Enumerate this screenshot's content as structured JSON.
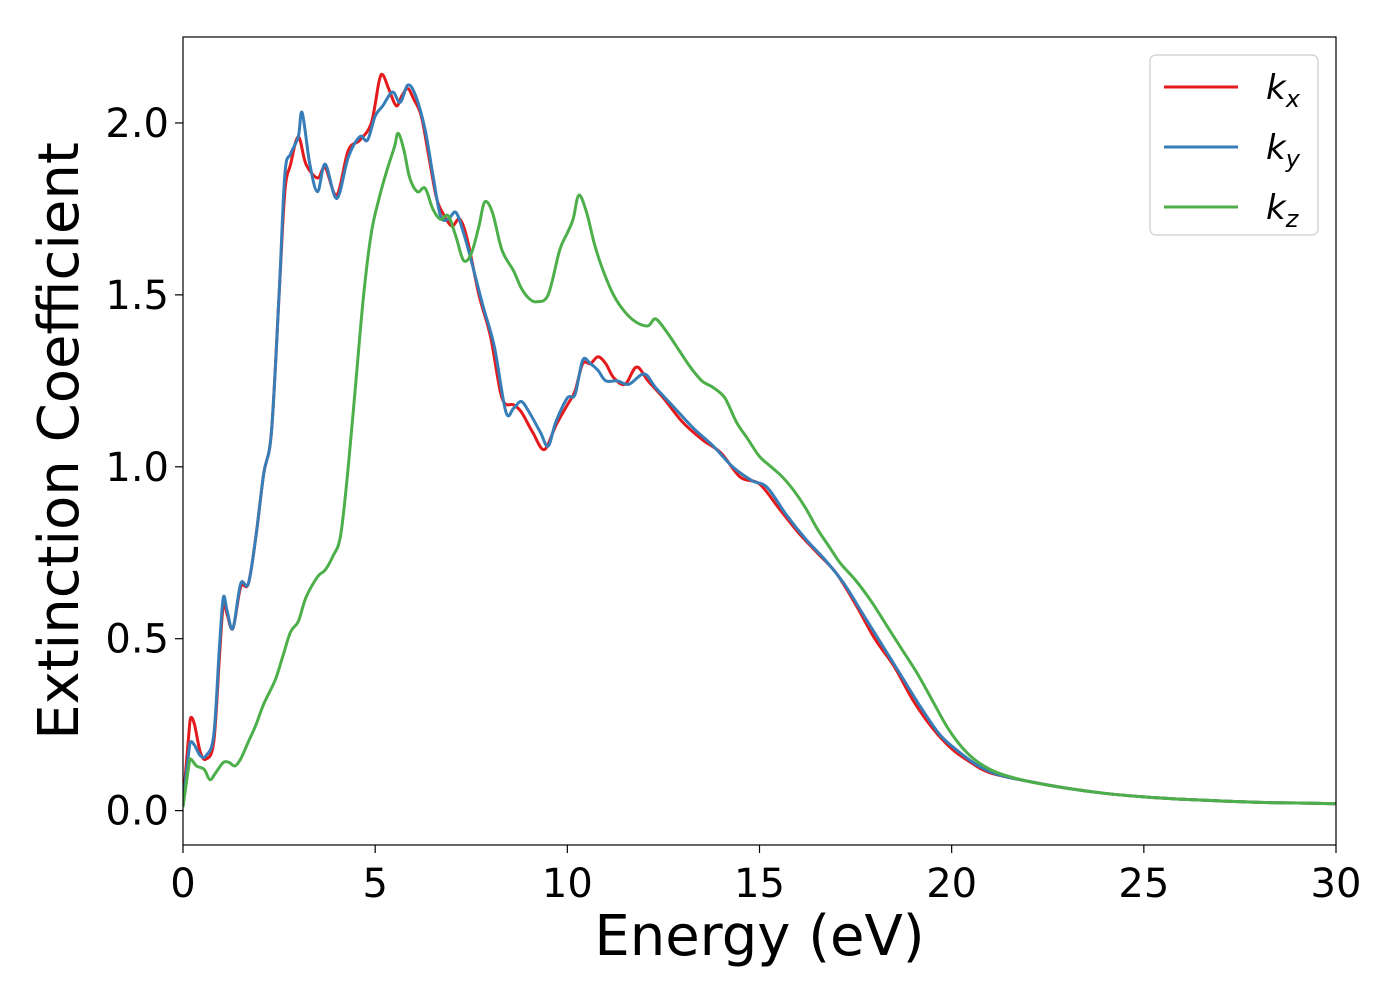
{
  "chart_data": {
    "type": "line",
    "title": "",
    "xlabel": "Energy (eV)",
    "ylabel": "Extinction Coefficient",
    "xlim": [
      0,
      30
    ],
    "ylim": [
      -0.1,
      2.25
    ],
    "xticks": [
      0,
      5,
      10,
      15,
      20,
      25,
      30
    ],
    "xtick_labels": [
      "0",
      "5",
      "10",
      "15",
      "20",
      "25",
      "30"
    ],
    "yticks": [
      0.0,
      0.5,
      1.0,
      1.5,
      2.0
    ],
    "ytick_labels": [
      "0.0",
      "0.5",
      "1.0",
      "1.5",
      "2.0"
    ],
    "grid": false,
    "legend_position": "top-right",
    "series": [
      {
        "name": "k",
        "subscript": "x",
        "color": "#e41a1c",
        "points": [
          [
            0,
            0.02
          ],
          [
            0.15,
            0.22
          ],
          [
            0.2,
            0.27
          ],
          [
            0.3,
            0.25
          ],
          [
            0.45,
            0.17
          ],
          [
            0.6,
            0.15
          ],
          [
            0.8,
            0.2
          ],
          [
            0.95,
            0.45
          ],
          [
            1.05,
            0.6
          ],
          [
            1.15,
            0.57
          ],
          [
            1.3,
            0.53
          ],
          [
            1.5,
            0.65
          ],
          [
            1.7,
            0.66
          ],
          [
            1.9,
            0.8
          ],
          [
            2.1,
            0.98
          ],
          [
            2.3,
            1.1
          ],
          [
            2.5,
            1.5
          ],
          [
            2.65,
            1.8
          ],
          [
            2.8,
            1.88
          ],
          [
            3.0,
            1.96
          ],
          [
            3.2,
            1.88
          ],
          [
            3.5,
            1.84
          ],
          [
            3.7,
            1.87
          ],
          [
            4.0,
            1.79
          ],
          [
            4.3,
            1.92
          ],
          [
            4.6,
            1.95
          ],
          [
            4.9,
            2.0
          ],
          [
            5.1,
            2.12
          ],
          [
            5.2,
            2.14
          ],
          [
            5.35,
            2.1
          ],
          [
            5.55,
            2.05
          ],
          [
            5.7,
            2.08
          ],
          [
            5.85,
            2.1
          ],
          [
            6.0,
            2.07
          ],
          [
            6.2,
            2.02
          ],
          [
            6.4,
            1.9
          ],
          [
            6.6,
            1.78
          ],
          [
            6.8,
            1.73
          ],
          [
            7.0,
            1.7
          ],
          [
            7.2,
            1.72
          ],
          [
            7.4,
            1.66
          ],
          [
            7.7,
            1.5
          ],
          [
            8.0,
            1.38
          ],
          [
            8.3,
            1.2
          ],
          [
            8.6,
            1.18
          ],
          [
            8.8,
            1.16
          ],
          [
            9.1,
            1.1
          ],
          [
            9.4,
            1.05
          ],
          [
            9.7,
            1.12
          ],
          [
            10.0,
            1.18
          ],
          [
            10.2,
            1.22
          ],
          [
            10.4,
            1.3
          ],
          [
            10.6,
            1.3
          ],
          [
            10.8,
            1.32
          ],
          [
            11.0,
            1.3
          ],
          [
            11.2,
            1.26
          ],
          [
            11.5,
            1.24
          ],
          [
            11.8,
            1.29
          ],
          [
            12.1,
            1.25
          ],
          [
            12.5,
            1.2
          ],
          [
            13.0,
            1.13
          ],
          [
            13.5,
            1.08
          ],
          [
            14.0,
            1.04
          ],
          [
            14.5,
            0.97
          ],
          [
            15.0,
            0.95
          ],
          [
            15.5,
            0.88
          ],
          [
            16.0,
            0.81
          ],
          [
            16.5,
            0.75
          ],
          [
            17.0,
            0.69
          ],
          [
            17.5,
            0.6
          ],
          [
            18.0,
            0.5
          ],
          [
            18.5,
            0.42
          ],
          [
            19.0,
            0.32
          ],
          [
            19.5,
            0.24
          ],
          [
            20.0,
            0.18
          ],
          [
            20.5,
            0.14
          ],
          [
            21.0,
            0.11
          ],
          [
            22.0,
            0.085
          ],
          [
            23.0,
            0.065
          ],
          [
            24.0,
            0.05
          ],
          [
            25.0,
            0.04
          ],
          [
            26.0,
            0.033
          ],
          [
            27.0,
            0.028
          ],
          [
            28.0,
            0.024
          ],
          [
            29.0,
            0.022
          ],
          [
            30.0,
            0.02
          ]
        ]
      },
      {
        "name": "k",
        "subscript": "y",
        "color": "#377eb8",
        "points": [
          [
            0,
            0.02
          ],
          [
            0.15,
            0.17
          ],
          [
            0.2,
            0.2
          ],
          [
            0.3,
            0.19
          ],
          [
            0.45,
            0.16
          ],
          [
            0.6,
            0.16
          ],
          [
            0.8,
            0.22
          ],
          [
            0.95,
            0.48
          ],
          [
            1.05,
            0.62
          ],
          [
            1.15,
            0.58
          ],
          [
            1.3,
            0.53
          ],
          [
            1.5,
            0.66
          ],
          [
            1.7,
            0.66
          ],
          [
            1.9,
            0.8
          ],
          [
            2.1,
            0.98
          ],
          [
            2.3,
            1.1
          ],
          [
            2.5,
            1.5
          ],
          [
            2.65,
            1.85
          ],
          [
            2.8,
            1.91
          ],
          [
            3.0,
            1.96
          ],
          [
            3.1,
            2.03
          ],
          [
            3.3,
            1.88
          ],
          [
            3.5,
            1.8
          ],
          [
            3.7,
            1.88
          ],
          [
            4.0,
            1.78
          ],
          [
            4.3,
            1.9
          ],
          [
            4.6,
            1.96
          ],
          [
            4.8,
            1.95
          ],
          [
            5.0,
            2.02
          ],
          [
            5.2,
            2.05
          ],
          [
            5.45,
            2.09
          ],
          [
            5.65,
            2.06
          ],
          [
            5.85,
            2.11
          ],
          [
            6.05,
            2.08
          ],
          [
            6.3,
            1.98
          ],
          [
            6.5,
            1.85
          ],
          [
            6.7,
            1.73
          ],
          [
            6.9,
            1.72
          ],
          [
            7.1,
            1.74
          ],
          [
            7.3,
            1.68
          ],
          [
            7.5,
            1.6
          ],
          [
            7.8,
            1.47
          ],
          [
            8.1,
            1.35
          ],
          [
            8.4,
            1.16
          ],
          [
            8.6,
            1.17
          ],
          [
            8.8,
            1.19
          ],
          [
            9.0,
            1.16
          ],
          [
            9.3,
            1.1
          ],
          [
            9.5,
            1.06
          ],
          [
            9.7,
            1.13
          ],
          [
            10.0,
            1.2
          ],
          [
            10.2,
            1.21
          ],
          [
            10.4,
            1.31
          ],
          [
            10.6,
            1.3
          ],
          [
            10.8,
            1.28
          ],
          [
            11.0,
            1.25
          ],
          [
            11.3,
            1.25
          ],
          [
            11.6,
            1.24
          ],
          [
            12.0,
            1.27
          ],
          [
            12.3,
            1.23
          ],
          [
            12.8,
            1.17
          ],
          [
            13.3,
            1.11
          ],
          [
            13.8,
            1.06
          ],
          [
            14.3,
            1.0
          ],
          [
            14.8,
            0.96
          ],
          [
            15.2,
            0.94
          ],
          [
            15.7,
            0.86
          ],
          [
            16.2,
            0.79
          ],
          [
            16.7,
            0.73
          ],
          [
            17.2,
            0.66
          ],
          [
            17.7,
            0.57
          ],
          [
            18.2,
            0.48
          ],
          [
            18.7,
            0.39
          ],
          [
            19.2,
            0.3
          ],
          [
            19.7,
            0.22
          ],
          [
            20.2,
            0.17
          ],
          [
            20.7,
            0.13
          ],
          [
            21.2,
            0.105
          ],
          [
            22.0,
            0.085
          ],
          [
            23.0,
            0.065
          ],
          [
            24.0,
            0.05
          ],
          [
            25.0,
            0.04
          ],
          [
            26.0,
            0.033
          ],
          [
            27.0,
            0.028
          ],
          [
            28.0,
            0.024
          ],
          [
            29.0,
            0.022
          ],
          [
            30.0,
            0.02
          ]
        ]
      },
      {
        "name": "k",
        "subscript": "z",
        "color": "#4daf4a",
        "points": [
          [
            0,
            0.01
          ],
          [
            0.15,
            0.13
          ],
          [
            0.2,
            0.15
          ],
          [
            0.35,
            0.13
          ],
          [
            0.55,
            0.12
          ],
          [
            0.7,
            0.09
          ],
          [
            0.85,
            0.11
          ],
          [
            1.05,
            0.14
          ],
          [
            1.2,
            0.14
          ],
          [
            1.35,
            0.13
          ],
          [
            1.5,
            0.15
          ],
          [
            1.7,
            0.2
          ],
          [
            1.9,
            0.25
          ],
          [
            2.1,
            0.31
          ],
          [
            2.4,
            0.38
          ],
          [
            2.6,
            0.45
          ],
          [
            2.8,
            0.52
          ],
          [
            3.0,
            0.55
          ],
          [
            3.2,
            0.62
          ],
          [
            3.5,
            0.68
          ],
          [
            3.7,
            0.7
          ],
          [
            3.9,
            0.74
          ],
          [
            4.1,
            0.8
          ],
          [
            4.3,
            1.0
          ],
          [
            4.5,
            1.25
          ],
          [
            4.7,
            1.5
          ],
          [
            4.9,
            1.68
          ],
          [
            5.1,
            1.78
          ],
          [
            5.3,
            1.86
          ],
          [
            5.5,
            1.93
          ],
          [
            5.6,
            1.97
          ],
          [
            5.75,
            1.92
          ],
          [
            5.9,
            1.84
          ],
          [
            6.1,
            1.8
          ],
          [
            6.3,
            1.81
          ],
          [
            6.5,
            1.75
          ],
          [
            6.7,
            1.72
          ],
          [
            6.9,
            1.73
          ],
          [
            7.1,
            1.67
          ],
          [
            7.3,
            1.6
          ],
          [
            7.5,
            1.62
          ],
          [
            7.7,
            1.7
          ],
          [
            7.85,
            1.77
          ],
          [
            8.05,
            1.74
          ],
          [
            8.3,
            1.63
          ],
          [
            8.6,
            1.57
          ],
          [
            8.8,
            1.52
          ],
          [
            9.0,
            1.49
          ],
          [
            9.2,
            1.48
          ],
          [
            9.5,
            1.5
          ],
          [
            9.8,
            1.63
          ],
          [
            10.0,
            1.68
          ],
          [
            10.15,
            1.72
          ],
          [
            10.3,
            1.79
          ],
          [
            10.5,
            1.74
          ],
          [
            10.7,
            1.65
          ],
          [
            10.9,
            1.58
          ],
          [
            11.2,
            1.5
          ],
          [
            11.5,
            1.45
          ],
          [
            11.8,
            1.42
          ],
          [
            12.1,
            1.41
          ],
          [
            12.3,
            1.43
          ],
          [
            12.6,
            1.39
          ],
          [
            12.9,
            1.34
          ],
          [
            13.2,
            1.29
          ],
          [
            13.5,
            1.25
          ],
          [
            13.8,
            1.23
          ],
          [
            14.1,
            1.2
          ],
          [
            14.4,
            1.13
          ],
          [
            14.7,
            1.08
          ],
          [
            15.0,
            1.03
          ],
          [
            15.3,
            1.0
          ],
          [
            15.6,
            0.97
          ],
          [
            15.9,
            0.93
          ],
          [
            16.2,
            0.88
          ],
          [
            16.5,
            0.82
          ],
          [
            16.8,
            0.77
          ],
          [
            17.1,
            0.72
          ],
          [
            17.5,
            0.67
          ],
          [
            17.9,
            0.61
          ],
          [
            18.3,
            0.54
          ],
          [
            18.7,
            0.47
          ],
          [
            19.1,
            0.4
          ],
          [
            19.5,
            0.32
          ],
          [
            19.9,
            0.24
          ],
          [
            20.3,
            0.18
          ],
          [
            20.7,
            0.14
          ],
          [
            21.2,
            0.11
          ],
          [
            22.0,
            0.085
          ],
          [
            23.0,
            0.065
          ],
          [
            24.0,
            0.05
          ],
          [
            25.0,
            0.04
          ],
          [
            26.0,
            0.033
          ],
          [
            27.0,
            0.028
          ],
          [
            28.0,
            0.024
          ],
          [
            29.0,
            0.022
          ],
          [
            30.0,
            0.02
          ]
        ]
      }
    ]
  }
}
